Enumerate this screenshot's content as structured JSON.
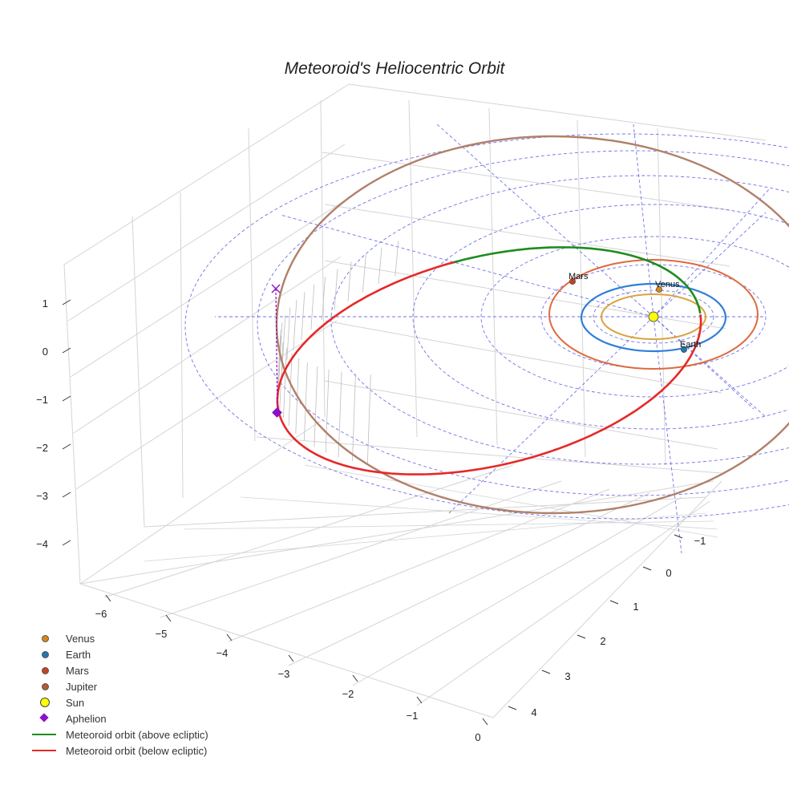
{
  "title": "Meteoroid's Heliocentric Orbit",
  "chart_data": {
    "type": "line3d",
    "axes": {
      "x": {
        "ticks": [
          "−6",
          "−5",
          "−4",
          "−3",
          "−2",
          "−1",
          "0"
        ]
      },
      "y": {
        "ticks": [
          "−1",
          "0",
          "1",
          "2",
          "3",
          "4"
        ]
      },
      "z": {
        "ticks": [
          "1",
          "0",
          "−1",
          "−2",
          "−3",
          "−4"
        ]
      }
    },
    "grid": true,
    "ecliptic_polar_grid": {
      "style": "dashed",
      "color": "#5a5ae0"
    },
    "planet_orbits": [
      {
        "name": "Venus",
        "radius_au": 0.72,
        "color": "#d9a43c"
      },
      {
        "name": "Earth",
        "radius_au": 1.0,
        "color": "#2f7fd6"
      },
      {
        "name": "Mars",
        "radius_au": 1.52,
        "color": "#dd6b3f"
      },
      {
        "name": "Jupiter",
        "radius_au": 5.2,
        "color": "#b0806a"
      }
    ],
    "planet_labels": [
      "Mars",
      "Venus",
      "Earth"
    ],
    "meteoroid_orbit": [
      {
        "name": "Meteoroid orbit (above ecliptic)",
        "color": "#1e8c1e"
      },
      {
        "name": "Meteoroid orbit (below ecliptic)",
        "color": "#e62828"
      }
    ],
    "aphelion": {
      "name": "Aphelion",
      "color": "#8b10c8"
    },
    "legend_position": "bottom-left"
  },
  "legend": [
    {
      "label": "Venus",
      "kind": "dot",
      "color": "#d9861a"
    },
    {
      "label": "Earth",
      "kind": "dot",
      "color": "#1f77b4"
    },
    {
      "label": "Mars",
      "kind": "dot",
      "color": "#c4431a"
    },
    {
      "label": "Jupiter",
      "kind": "dot",
      "color": "#b45a32"
    },
    {
      "label": "Sun",
      "kind": "sun",
      "color": "#ffff00"
    },
    {
      "label": "Aphelion",
      "kind": "diamond",
      "color": "#8b10c8"
    },
    {
      "label": "Meteoroid orbit (above ecliptic)",
      "kind": "line",
      "color": "#1e8c1e"
    },
    {
      "label": "Meteoroid orbit (below ecliptic)",
      "kind": "line",
      "color": "#e62828"
    }
  ]
}
